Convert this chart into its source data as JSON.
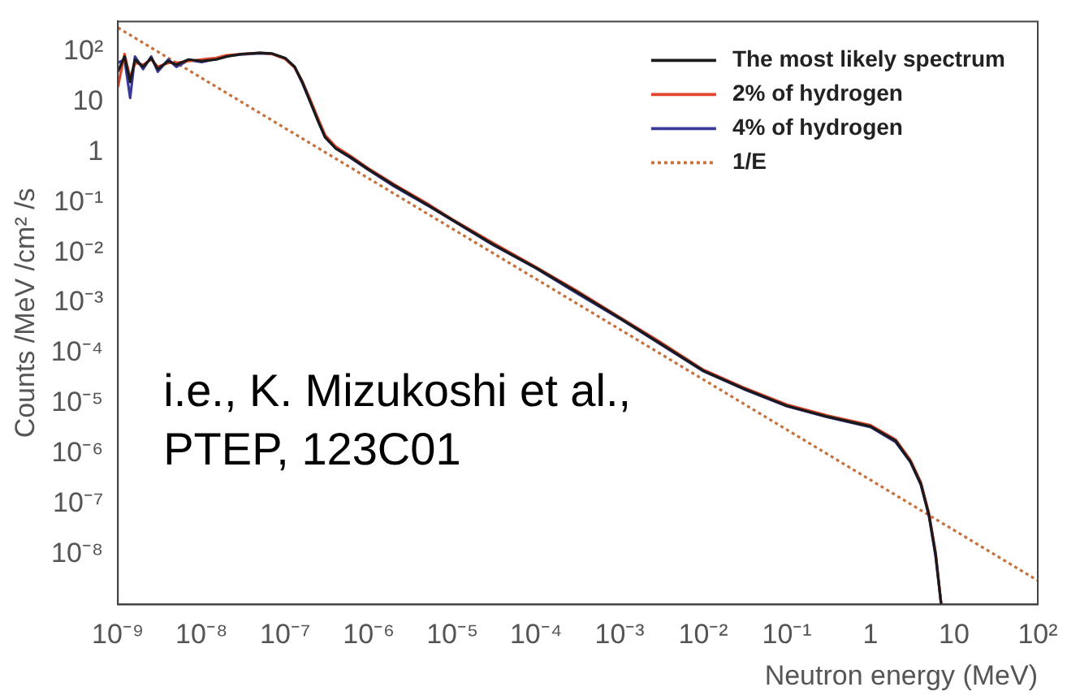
{
  "chart_data": {
    "type": "line",
    "xlabel": "Neutron energy (MeV)",
    "ylabel": "Counts /MeV /cm² /s",
    "log": "xy",
    "xlim": [
      1e-09,
      100
    ],
    "ylim": [
      1e-09,
      400
    ],
    "xticks": [
      {
        "value": 1e-09,
        "label": "10⁻⁹"
      },
      {
        "value": 1e-08,
        "label": "10⁻⁸"
      },
      {
        "value": 1e-07,
        "label": "10⁻⁷"
      },
      {
        "value": 1e-06,
        "label": "10⁻⁶"
      },
      {
        "value": 1e-05,
        "label": "10⁻⁵"
      },
      {
        "value": 0.0001,
        "label": "10⁻⁴"
      },
      {
        "value": 0.001,
        "label": "10⁻³"
      },
      {
        "value": 0.01,
        "label": "10⁻²"
      },
      {
        "value": 0.1,
        "label": "10⁻¹"
      },
      1,
      10,
      {
        "value": 100,
        "label": "10²"
      }
    ],
    "yticks": [
      {
        "value": 1e-08,
        "label": "10⁻⁸"
      },
      {
        "value": 1e-07,
        "label": "10⁻⁷"
      },
      {
        "value": 1e-06,
        "label": "10⁻⁶"
      },
      {
        "value": 1e-05,
        "label": "10⁻⁵"
      },
      {
        "value": 0.0001,
        "label": "10⁻⁴"
      },
      {
        "value": 0.001,
        "label": "10⁻³"
      },
      {
        "value": 0.01,
        "label": "10⁻²"
      },
      {
        "value": 0.1,
        "label": "10⁻¹"
      },
      1,
      10,
      {
        "value": 100,
        "label": "10²"
      }
    ],
    "grid": false,
    "legend": "top right",
    "marker": "none",
    "x": [
      1e-09,
      1.2e-09,
      1.4e-09,
      1.6e-09,
      2e-09,
      2.5e-09,
      3e-09,
      4e-09,
      5e-09,
      7e-09,
      1e-08,
      1.5e-08,
      2e-08,
      3e-08,
      5e-08,
      7e-08,
      1e-07,
      1.3e-07,
      1.6e-07,
      2e-07,
      2.5e-07,
      3e-07,
      4e-07,
      6e-07,
      1e-06,
      2e-06,
      5e-06,
      1e-05,
      3e-05,
      0.0001,
      0.0003,
      0.001,
      0.003,
      0.01,
      0.03,
      0.1,
      0.3,
      1,
      2,
      3,
      4,
      5,
      6,
      7
    ],
    "series": [
      {
        "name": "The most likely spectrum",
        "color": "#1a1a1a",
        "line_style": "solid",
        "values": [
          40,
          80,
          25,
          70,
          50,
          75,
          45,
          65,
          55,
          70,
          65,
          70,
          80,
          90,
          95,
          92,
          75,
          50,
          25,
          10,
          4,
          2,
          1.2,
          0.8,
          0.45,
          0.22,
          0.09,
          0.045,
          0.015,
          0.005,
          0.0017,
          0.0005,
          0.00016,
          4.5e-05,
          2e-05,
          9e-06,
          5.5e-06,
          3.5e-06,
          1.8e-06,
          7e-07,
          2.5e-07,
          6e-08,
          1e-08,
          1e-09
        ]
      },
      {
        "name": "2% of hydrogen",
        "color": "#e0452c",
        "line_style": "solid",
        "values": [
          20,
          90,
          30,
          60,
          55,
          70,
          50,
          60,
          60,
          65,
          70,
          75,
          85,
          90,
          95,
          90,
          72,
          48,
          26,
          11,
          4.5,
          2.2,
          1.3,
          0.85,
          0.47,
          0.23,
          0.095,
          0.046,
          0.016,
          0.0052,
          0.0018,
          0.00052,
          0.00017,
          4.7e-05,
          2.1e-05,
          9.5e-06,
          5.8e-06,
          3.7e-06,
          1.9e-06,
          7.5e-07,
          2.7e-07,
          6.5e-08,
          1.1e-08,
          1e-09
        ]
      },
      {
        "name": "4% of hydrogen",
        "color": "#3a3a9a",
        "line_style": "solid",
        "values": [
          60,
          70,
          12,
          80,
          45,
          80,
          40,
          70,
          50,
          68,
          62,
          72,
          82,
          88,
          93,
          90,
          73,
          49,
          24,
          10,
          4,
          2,
          1.2,
          0.78,
          0.44,
          0.21,
          0.088,
          0.044,
          0.0145,
          0.0049,
          0.0016,
          0.00049,
          0.000155,
          4.4e-05,
          1.95e-05,
          8.8e-06,
          5.4e-06,
          3.4e-06,
          1.7e-06,
          6.8e-07,
          2.4e-07,
          5.8e-08,
          9e-09,
          1e-09
        ]
      },
      {
        "name": "1/E",
        "color": "#c8703c",
        "line_style": "dotted",
        "x": [
          1e-09,
          100
        ],
        "values": [
          300,
          3e-09
        ]
      }
    ],
    "annotations": [
      "i.e., K. Mizukoshi et al., PTEP, 123C01"
    ]
  }
}
